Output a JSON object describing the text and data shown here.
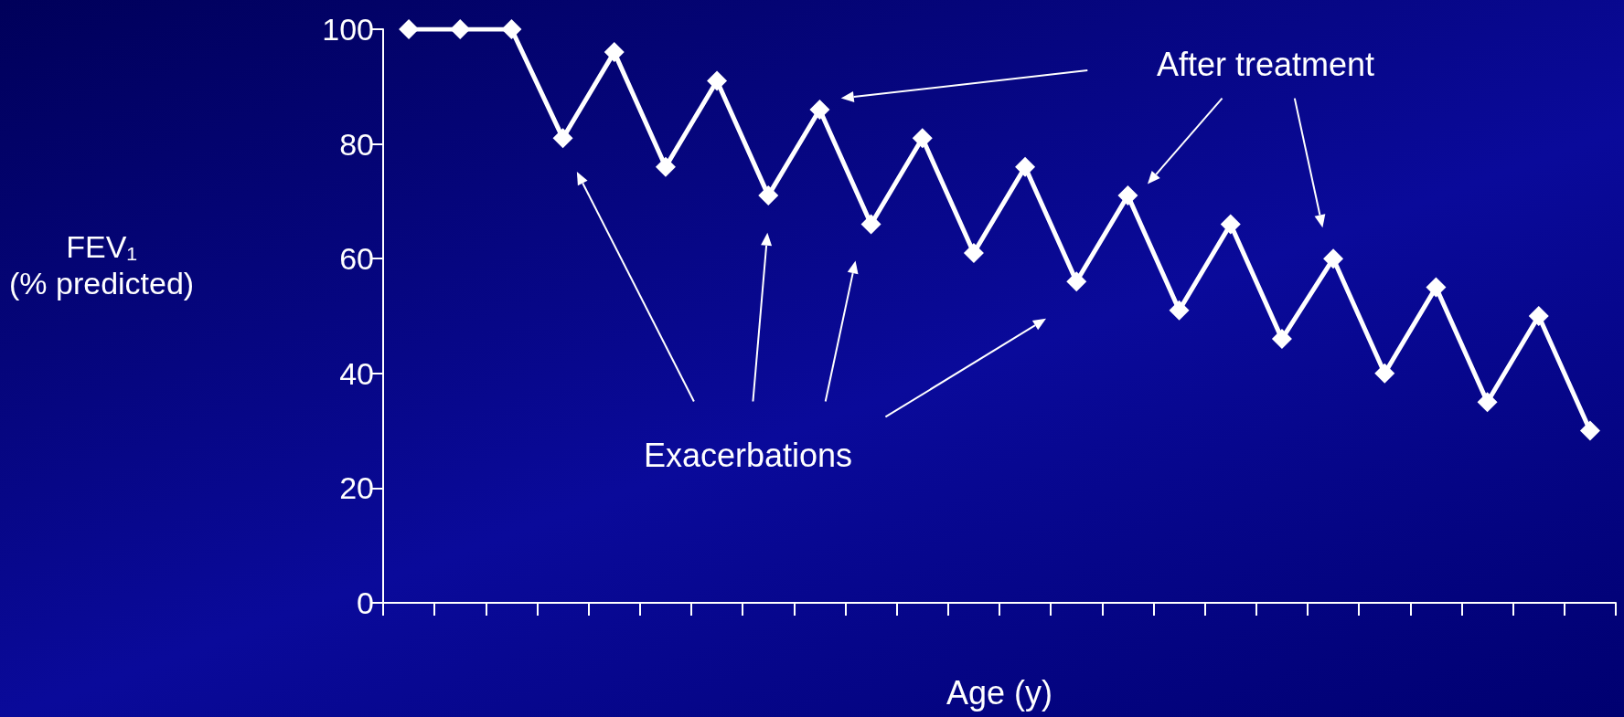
{
  "chart_data": {
    "type": "line",
    "xlabel": "Age (y)",
    "ylabel": "FEV₁\n(% predicted)",
    "categories": [
      null,
      null,
      null,
      null,
      null,
      null,
      null,
      null,
      null,
      null,
      null,
      null,
      null,
      null,
      null,
      null,
      null,
      null,
      null,
      null,
      null,
      null,
      null,
      null
    ],
    "series": [
      {
        "color": "#ffffff",
        "values": [
          100,
          100,
          100,
          81,
          96,
          76,
          91,
          71,
          86,
          66,
          81,
          61,
          76,
          56,
          71,
          51,
          66,
          46,
          60,
          40,
          55,
          35,
          50,
          30
        ]
      }
    ],
    "ylim": [
      0,
      100
    ],
    "yticks": [
      0,
      20,
      40,
      60,
      80,
      100
    ],
    "tick_labels": "y",
    "grid": false,
    "marker": "diamond",
    "line_style": "solid",
    "annotations": [
      "After treatment",
      "Exacerbations"
    ]
  }
}
